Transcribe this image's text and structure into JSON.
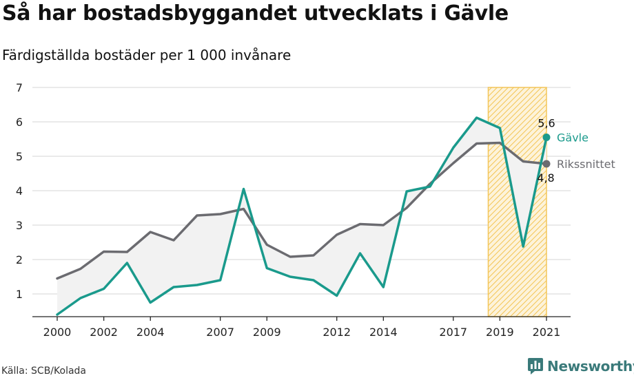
{
  "header": {
    "title": "Så har bostadsbyggandet utvecklats i Gävle",
    "subtitle": "Färdigställda bostäder per 1 000 invånare"
  },
  "footer": {
    "source": "Källa: SCB/Kolada",
    "brand": "Newsworthy"
  },
  "colors": {
    "gavle": "#1a9a8c",
    "riks": "#6b6b70",
    "highlight": "#f3c65a",
    "fill": "#f2f2f2",
    "grid": "#dddddd"
  },
  "chart_data": {
    "type": "line",
    "x": [
      2000,
      2001,
      2002,
      2003,
      2004,
      2005,
      2006,
      2007,
      2008,
      2009,
      2010,
      2011,
      2012,
      2013,
      2014,
      2015,
      2016,
      2017,
      2018,
      2019,
      2020,
      2021
    ],
    "x_ticks": [
      "2000",
      "2002",
      "2004",
      "2007",
      "2009",
      "2012",
      "2014",
      "2017",
      "2019",
      "2021"
    ],
    "y_ticks": [
      "1",
      "2",
      "3",
      "4",
      "5",
      "6",
      "7"
    ],
    "ylim": [
      0.35,
      7
    ],
    "grid": true,
    "highlight_range": [
      2018.5,
      2021
    ],
    "series": [
      {
        "name": "Gävle",
        "values": [
          0.4,
          0.88,
          1.15,
          1.9,
          0.75,
          1.2,
          1.26,
          1.4,
          4.05,
          1.75,
          1.5,
          1.4,
          0.95,
          2.18,
          1.2,
          3.98,
          4.12,
          5.25,
          6.12,
          5.82,
          2.38,
          5.55
        ],
        "end_label": "5,6"
      },
      {
        "name": "Rikssnittet",
        "values": [
          1.45,
          1.73,
          2.23,
          2.22,
          2.8,
          2.56,
          3.28,
          3.32,
          3.47,
          2.43,
          2.08,
          2.12,
          2.72,
          3.03,
          3.0,
          3.5,
          4.2,
          4.8,
          5.37,
          5.39,
          4.85,
          4.78
        ],
        "end_label": "4,8"
      }
    ]
  }
}
